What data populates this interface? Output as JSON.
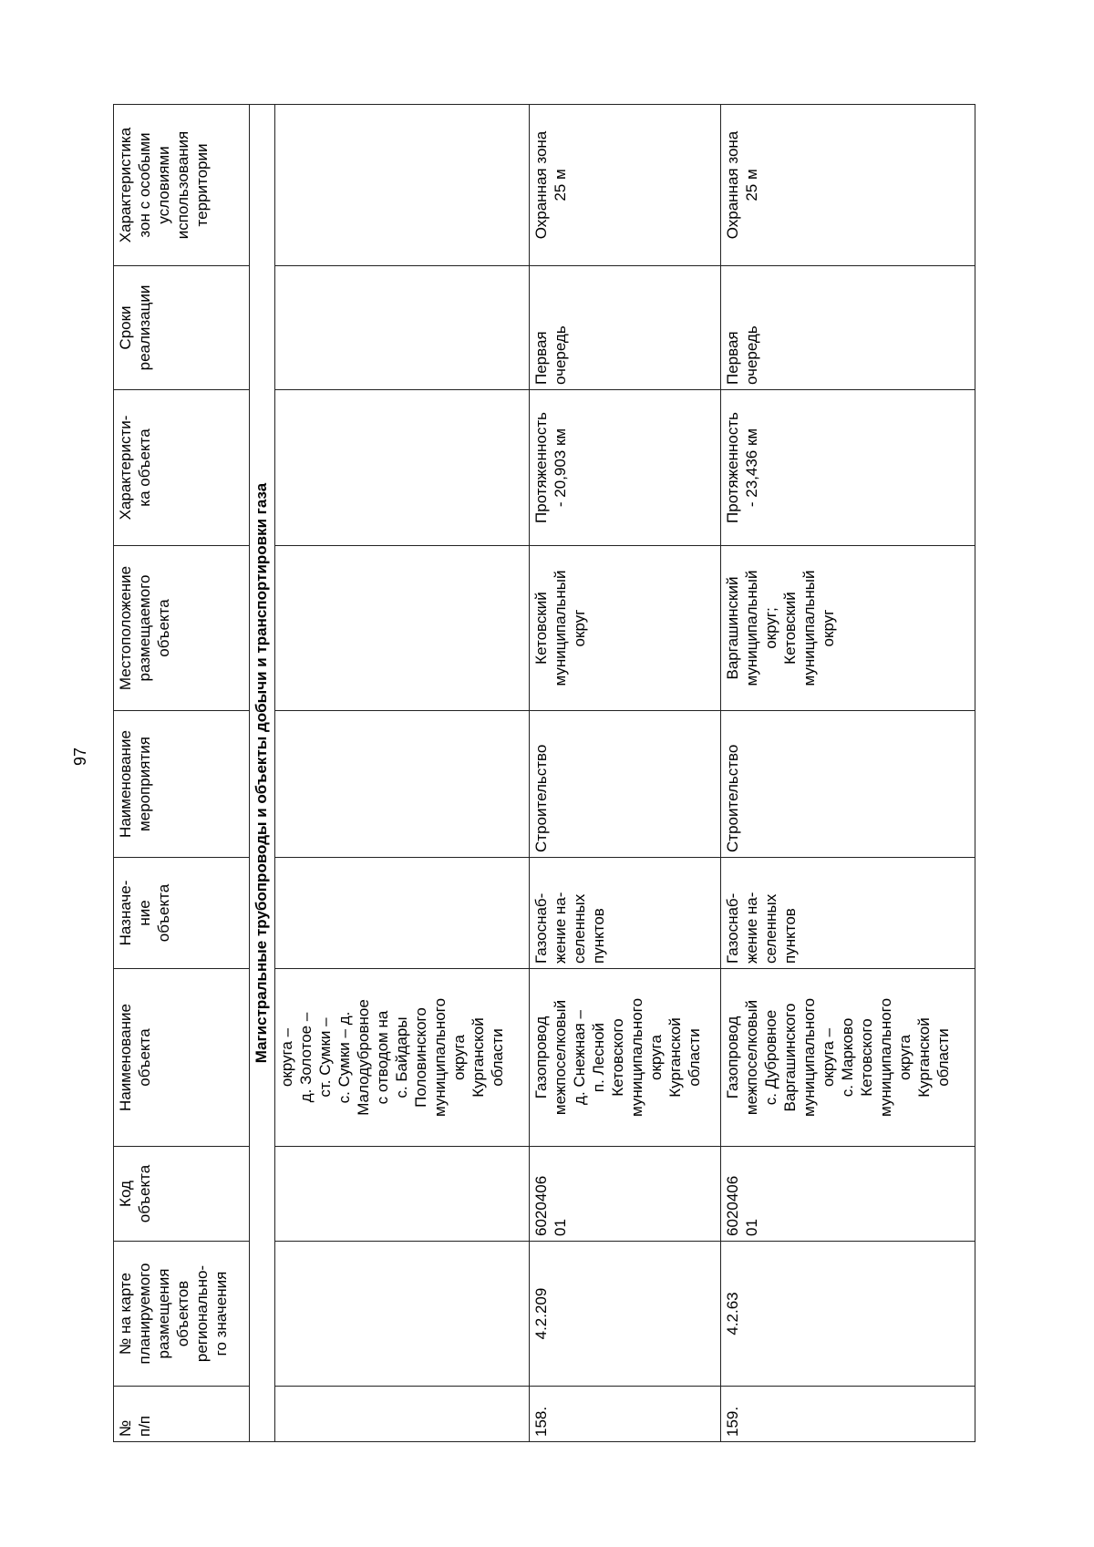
{
  "page_number": "97",
  "headers": [
    "№\nп/п",
    "№ на карте\nпланируемого\nразмещения\nобъектов\nрегионально-\nго значения",
    "Код\nобъекта",
    "Наименование\nобъекта",
    "Назначе-\nние\nобъекта",
    "Наименование\nмероприятия",
    "Местоположение\nразмещаемого\nобъекта",
    "Характеристи-\nка объекта",
    "Сроки\nреализации",
    "Характеристика\nзон с особыми\nусловиями\nиспользования\nтерритории"
  ],
  "section_title": "Магистральные трубопроводы и объекты добычи и транспортировки газа",
  "continuation_row": {
    "name": "округа –\nд. Золотое –\nст. Сумки –\nс. Сумки – д.\nМалодубровное\nс отводом на\nс. Байдары\nПоловинского\nмуниципального\nокруга\nКурганской\nобласти"
  },
  "rows": [
    {
      "num": "158.",
      "map_num": "4.2.209",
      "code": "6020406\n01",
      "name": "Газопровод\nмежпоселковый\nд. Снежная –\nп. Лесной\nКетовского\nмуниципального\nокруга\nКурганской\nобласти",
      "purpose": "Газоснаб-\nжение на-\nселенных\nпунктов",
      "action": "Строительство",
      "location": "Кетовский\nмуниципальный\nокруг",
      "characteristic": "Протяженность\n- 20,903 км",
      "term": "Первая\nочередь",
      "zone": "Охранная зона\n25 м"
    },
    {
      "num": "159.",
      "map_num": "4.2.63",
      "code": "6020406\n01",
      "name": "Газопровод\nмежпоселковый\nс. Дубровное\nВаргашинского\nмуниципального\nокруга –\nс. Марково\nКетовского\nмуниципального\nокруга\nКурганской\nобласти",
      "purpose": "Газоснаб-\nжение на-\nселенных\nпунктов",
      "action": "Строительство",
      "location": "Варгашинский\nмуниципальный\nокруг;\nКетовский\nмуниципальный\nокруг",
      "characteristic": "Протяженность\n- 23,436 км",
      "term": "Первая\nочередь",
      "zone": "Охранная зона\n25 м"
    }
  ]
}
